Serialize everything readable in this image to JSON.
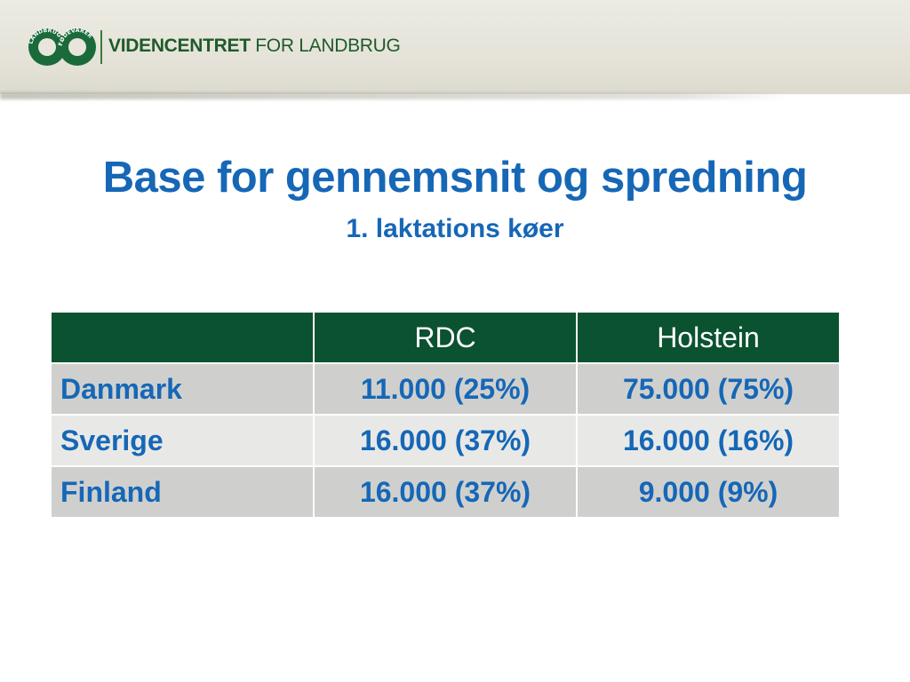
{
  "header": {
    "logo_icon": "landbrug-foedevarer-logo-icon",
    "logo_ring_text_left": "LANDBRUG",
    "logo_ring_text_right": "FØDEVARER",
    "brand_bold": "VIDENCENTRET",
    "brand_regular": " FOR LANDBRUG",
    "brand_color": "#1f5a2b"
  },
  "slide": {
    "title": "Base for gennemsnit og spredning",
    "subtitle": "1. laktations køer",
    "title_color": "#1667b6"
  },
  "table": {
    "header_color": "#0b5230",
    "columns": [
      "",
      "RDC",
      "Holstein"
    ],
    "rows": [
      {
        "country": "Danmark",
        "rdc": "11.000 (25%)",
        "holstein": "75.000 (75%)"
      },
      {
        "country": "Sverige",
        "rdc": "16.000 (37%)",
        "holstein": "16.000 (16%)"
      },
      {
        "country": "Finland",
        "rdc": "16.000 (37%)",
        "holstein": "9.000 (9%)"
      }
    ]
  }
}
